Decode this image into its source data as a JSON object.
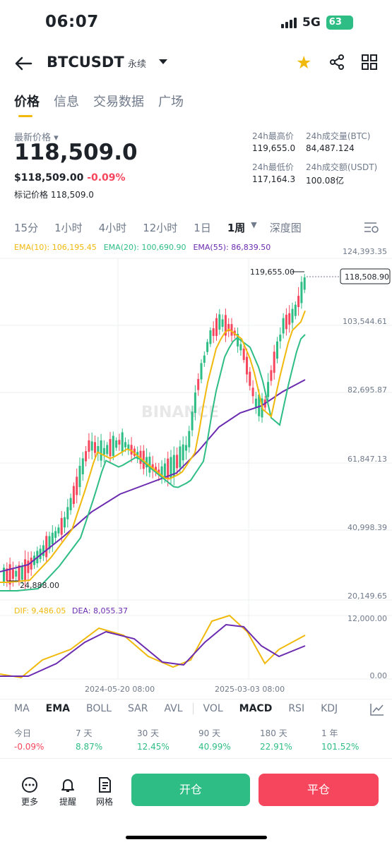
{
  "status": {
    "time": "06:07",
    "network": "5G",
    "battery": "63"
  },
  "header": {
    "symbol": "BTCUSDT",
    "contract": "永续"
  },
  "tabs": [
    "价格",
    "信息",
    "交易数据",
    "广场"
  ],
  "price": {
    "last_label": "最新价格",
    "last": "118,509.0",
    "usd": "$118,509.00",
    "change": "-0.09%",
    "mark_label": "标记价格",
    "mark": "118,509.0",
    "high_label": "24h最高价",
    "high": "119,655.0",
    "low_label": "24h最低价",
    "low": "117,164.3",
    "vol_btc_label": "24h成交量(BTC)",
    "vol_btc": "84,487.124",
    "vol_usdt_label": "24h成交额(USDT)",
    "vol_usdt": "100.08亿"
  },
  "intervals": [
    "15分",
    "1小时",
    "4小时",
    "12小时",
    "1日",
    "1周",
    "深度图"
  ],
  "ema": {
    "e10": "EMA(10): 106,195.45",
    "e20": "EMA(20): 100,690.90",
    "e55": "EMA(55): 86,839.50"
  },
  "macd": {
    "dif": "DIF: 9,486.05",
    "dea": "DEA: 8,055.37"
  },
  "indicators": [
    "MA",
    "EMA",
    "BOLL",
    "SAR",
    "AVL",
    "VOL",
    "MACD",
    "RSI",
    "KDJ"
  ],
  "performance": [
    {
      "label": "今日",
      "value": "-0.09%"
    },
    {
      "label": "7 天",
      "value": "8.87%"
    },
    {
      "label": "30 天",
      "value": "12.45%"
    },
    {
      "label": "90 天",
      "value": "40.99%"
    },
    {
      "label": "180 天",
      "value": "22.91%"
    },
    {
      "label": "1 年",
      "value": "101.52%"
    }
  ],
  "bottom": {
    "more": "更多",
    "alert": "提醒",
    "grid": "网格",
    "open": "开仓",
    "close": "平仓"
  },
  "colors": {
    "up": "#2ebd85",
    "down": "#f6465d",
    "accent": "#f0b90b",
    "ema10": "#f0b90b",
    "ema20": "#2ebd85",
    "ema55": "#6b2bb0"
  },
  "chart_data": {
    "type": "candlestick",
    "y_ticks": [
      "124,393.35",
      "103,544.61",
      "82,695.87",
      "61,847.13",
      "40,998.39",
      "20,149.65"
    ],
    "macd_ticks": [
      "12,000.00",
      "0.00"
    ],
    "x_ticks": [
      "2024-05-20 08:00",
      "2025-03-03 08:00"
    ],
    "annotations": {
      "high": "119,655.00",
      "low": "24,888.00",
      "current": "118,508.90"
    },
    "watermark": "BINANCE"
  }
}
